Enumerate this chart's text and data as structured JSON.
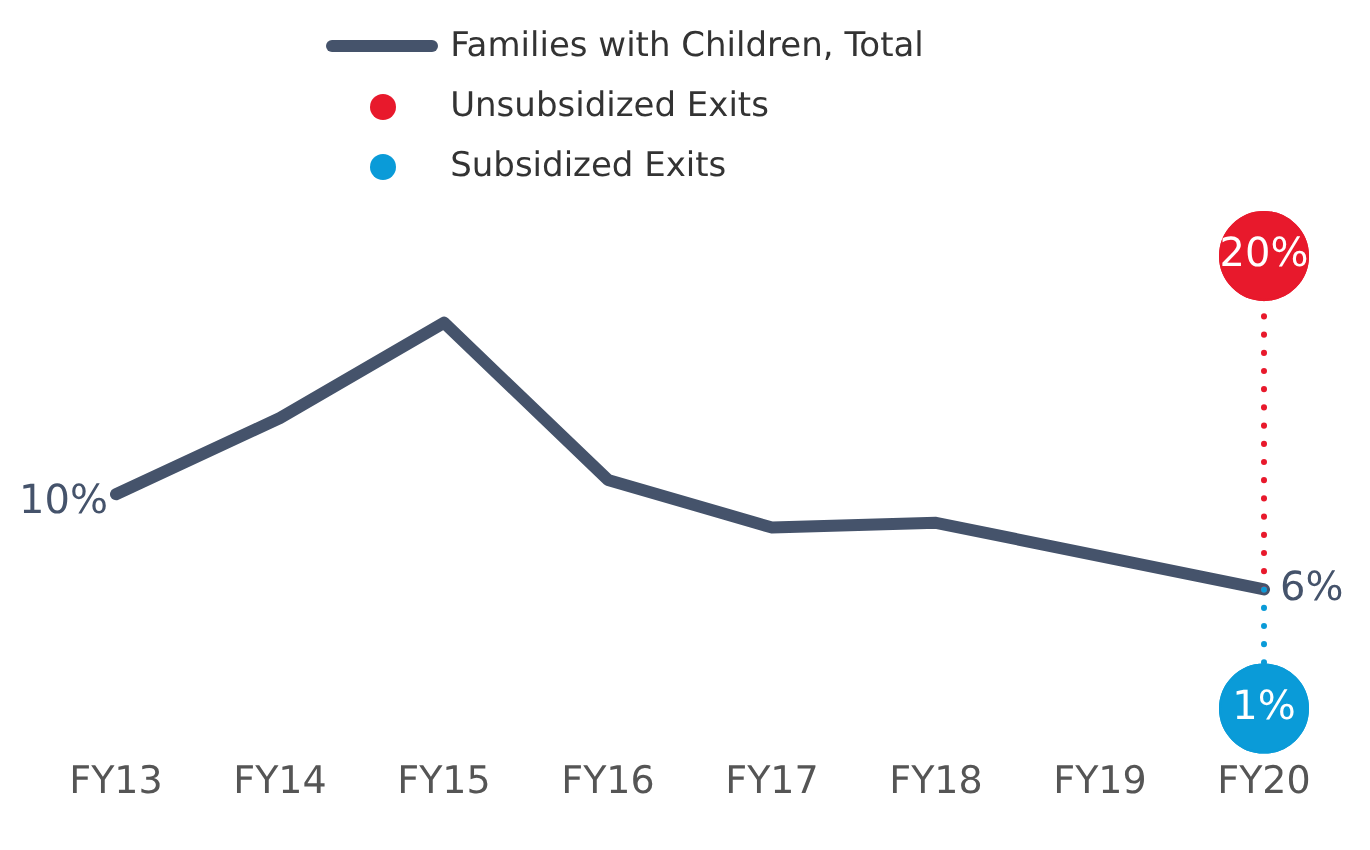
{
  "chart_data": {
    "type": "line",
    "categories": [
      "FY13",
      "FY14",
      "FY15",
      "FY16",
      "FY17",
      "FY18",
      "FY19",
      "FY20"
    ],
    "series": [
      {
        "name": "Families with Children, Total",
        "color": "#45536b",
        "marker": "none",
        "values": [
          10,
          13.2,
          17.2,
          10.6,
          8.6,
          8.8,
          7.4,
          6
        ],
        "value_labels": [
          "10%",
          null,
          null,
          null,
          null,
          null,
          null,
          "6%"
        ]
      },
      {
        "name": "Unsubsidized Exits",
        "type": "scatter",
        "marker": "circle",
        "color": "#e8192c",
        "x": [
          "FY20"
        ],
        "values": [
          20
        ],
        "value_labels": [
          "20%"
        ]
      },
      {
        "name": "Subsidized Exits",
        "type": "scatter",
        "marker": "circle",
        "color": "#0a9bd8",
        "x": [
          "FY20"
        ],
        "values": [
          1
        ],
        "value_labels": [
          "1%"
        ]
      }
    ],
    "tick_labels": "x",
    "grid": false,
    "legend": "top",
    "line_style": "solid"
  }
}
